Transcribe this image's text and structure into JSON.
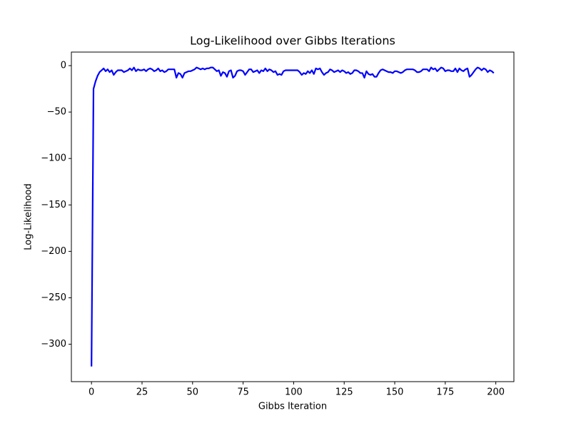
{
  "chart_data": {
    "type": "line",
    "title": "Log-Likelihood over Gibbs Iterations",
    "xlabel": "Gibbs Iteration",
    "ylabel": "Log-Likelihood",
    "color": "#0000ff",
    "x": [
      0,
      1,
      2,
      3,
      4,
      5,
      6,
      7,
      8,
      9,
      10,
      11,
      12,
      13,
      14,
      15,
      16,
      17,
      18,
      19,
      20,
      21,
      22,
      23,
      24,
      25,
      26,
      27,
      28,
      29,
      30,
      31,
      32,
      33,
      34,
      35,
      36,
      37,
      38,
      39,
      40,
      41,
      42,
      43,
      44,
      45,
      46,
      47,
      48,
      49,
      50,
      51,
      52,
      53,
      54,
      55,
      56,
      57,
      58,
      59,
      60,
      61,
      62,
      63,
      64,
      65,
      66,
      67,
      68,
      69,
      70,
      71,
      72,
      73,
      74,
      75,
      76,
      77,
      78,
      79,
      80,
      81,
      82,
      83,
      84,
      85,
      86,
      87,
      88,
      89,
      90,
      91,
      92,
      93,
      94,
      95,
      96,
      97,
      98,
      99,
      100,
      101,
      102,
      103,
      104,
      105,
      106,
      107,
      108,
      109,
      110,
      111,
      112,
      113,
      114,
      115,
      116,
      117,
      118,
      119,
      120,
      121,
      122,
      123,
      124,
      125,
      126,
      127,
      128,
      129,
      130,
      131,
      132,
      133,
      134,
      135,
      136,
      137,
      138,
      139,
      140,
      141,
      142,
      143,
      144,
      145,
      146,
      147,
      148,
      149,
      150,
      151,
      152,
      153,
      154,
      155,
      156,
      157,
      158,
      159,
      160,
      161,
      162,
      163,
      164,
      165,
      166,
      167,
      168,
      169,
      170,
      171,
      172,
      173,
      174,
      175,
      176,
      177,
      178,
      179,
      180,
      181,
      182,
      183,
      184,
      185,
      186,
      187,
      188,
      189,
      190,
      191,
      192,
      193,
      194,
      195,
      196,
      197,
      198,
      199
    ],
    "values": [
      -324,
      -25,
      -17,
      -11,
      -7,
      -5,
      -3,
      -6,
      -4,
      -7,
      -5,
      -10,
      -7,
      -5,
      -5,
      -5,
      -7,
      -6,
      -5,
      -3,
      -5,
      -2,
      -6,
      -4,
      -5,
      -5,
      -4,
      -6,
      -4,
      -3,
      -4,
      -6,
      -5,
      -3,
      -6,
      -5,
      -7,
      -6,
      -4,
      -4,
      -4,
      -4,
      -13,
      -8,
      -9,
      -13,
      -8,
      -7,
      -6,
      -6,
      -5,
      -4,
      -2,
      -3,
      -4,
      -3,
      -4,
      -3,
      -3,
      -2,
      -2,
      -4,
      -6,
      -5,
      -11,
      -7,
      -8,
      -12,
      -6,
      -5,
      -13,
      -11,
      -6,
      -5,
      -5,
      -6,
      -10,
      -7,
      -4,
      -4,
      -7,
      -6,
      -5,
      -8,
      -5,
      -6,
      -3,
      -6,
      -4,
      -5,
      -7,
      -6,
      -10,
      -9,
      -10,
      -6,
      -5,
      -5,
      -5,
      -5,
      -5,
      -5,
      -5,
      -7,
      -10,
      -8,
      -9,
      -6,
      -8,
      -5,
      -9,
      -3,
      -4,
      -3,
      -7,
      -10,
      -8,
      -7,
      -4,
      -5,
      -7,
      -6,
      -5,
      -7,
      -5,
      -6,
      -8,
      -7,
      -9,
      -8,
      -5,
      -5,
      -6,
      -8,
      -8,
      -13,
      -6,
      -9,
      -10,
      -9,
      -12,
      -12,
      -8,
      -5,
      -4,
      -5,
      -6,
      -7,
      -7,
      -8,
      -6,
      -6,
      -7,
      -8,
      -7,
      -5,
      -4,
      -4,
      -4,
      -4,
      -5,
      -7,
      -7,
      -6,
      -4,
      -4,
      -4,
      -6,
      -2,
      -4,
      -3,
      -6,
      -4,
      -2,
      -3,
      -6,
      -5,
      -5,
      -6,
      -6,
      -3,
      -7,
      -3,
      -5,
      -6,
      -4,
      -3,
      -12,
      -10,
      -7,
      -4,
      -2,
      -3,
      -5,
      -3,
      -4,
      -7,
      -5,
      -6,
      -8
    ],
    "xlim": [
      -9.95,
      208.95
    ],
    "ylim": [
      -340.3,
      14.6
    ],
    "xticks": [
      0,
      25,
      50,
      75,
      100,
      125,
      150,
      175,
      200
    ],
    "yticks": [
      {
        "value": -300,
        "label": "−300"
      },
      {
        "value": -250,
        "label": "−250"
      },
      {
        "value": -200,
        "label": "−200"
      },
      {
        "value": -150,
        "label": "−150"
      },
      {
        "value": -100,
        "label": "−100"
      },
      {
        "value": -50,
        "label": "−50"
      },
      0
    ]
  }
}
